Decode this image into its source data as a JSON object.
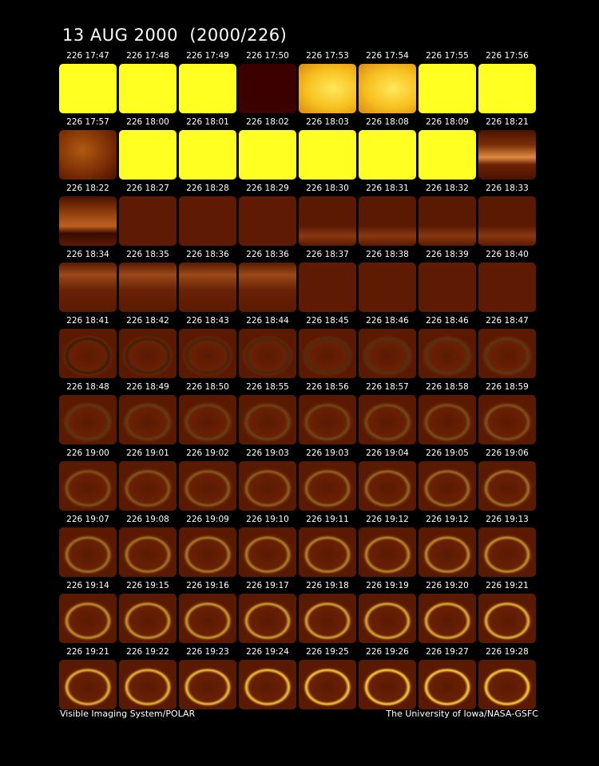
{
  "header": {
    "title": "13 AUG 2000  (2000/226)"
  },
  "frames": {
    "rows": [
      [
        "226 17:47",
        "226 17:48",
        "226 17:49",
        "226 17:50",
        "226 17:53",
        "226 17:54",
        "226 17:55",
        "226 17:56"
      ],
      [
        "226 17:57",
        "226 18:00",
        "226 18:01",
        "226 18:02",
        "226 18:03",
        "226 18:08",
        "226 18:09",
        "226 18:21"
      ],
      [
        "226 18:22",
        "226 18:27",
        "226 18:28",
        "226 18:29",
        "226 18:30",
        "226 18:31",
        "226 18:32",
        "226 18:33"
      ],
      [
        "226 18:34",
        "226 18:35",
        "226 18:36",
        "226 18:36",
        "226 18:37",
        "226 18:38",
        "226 18:39",
        "226 18:40"
      ],
      [
        "226 18:41",
        "226 18:42",
        "226 18:43",
        "226 18:44",
        "226 18:45",
        "226 18:46",
        "226 18:46",
        "226 18:47"
      ],
      [
        "226 18:48",
        "226 18:49",
        "226 18:50",
        "226 18:55",
        "226 18:56",
        "226 18:57",
        "226 18:58",
        "226 18:59"
      ],
      [
        "226 19:00",
        "226 19:01",
        "226 19:02",
        "226 19:03",
        "226 19:03",
        "226 19:04",
        "226 19:05",
        "226 19:06"
      ],
      [
        "226 19:07",
        "226 19:08",
        "226 19:09",
        "226 19:10",
        "226 19:11",
        "226 19:12",
        "226 19:12",
        "226 19:13"
      ],
      [
        "226 19:14",
        "226 19:15",
        "226 19:16",
        "226 19:17",
        "226 19:18",
        "226 19:19",
        "226 19:20",
        "226 19:21"
      ],
      [
        "226 19:21",
        "226 19:22",
        "226 19:23",
        "226 19:24",
        "226 19:25",
        "226 19:26",
        "226 19:27",
        "226 19:28"
      ]
    ]
  },
  "footer": {
    "left": "Visible Imaging System/POLAR",
    "right": "The University of Iowa/NASA-GSFC"
  }
}
